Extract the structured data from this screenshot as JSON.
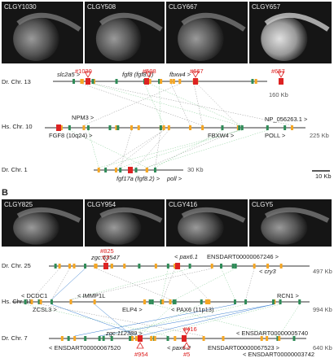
{
  "panels": [
    {
      "label": "A",
      "images": [
        "CLGY1030",
        "CLGY508",
        "CLGY667",
        "CLGY657"
      ],
      "tracks": [
        {
          "name": "Dr. Chr. 13",
          "size": "160 Kb",
          "genes": [
            "slc2a5 >",
            "fgf8 (fgf8.1)",
            "fbxw4 >"
          ],
          "enhancers": [
            "#1030",
            "#508",
            "#667",
            "#657"
          ]
        },
        {
          "name": "Hs. Chr. 10",
          "size": "225 Kb",
          "genes": [
            "NPM3 >",
            "FGF8 (10q24) >",
            "NP_056263.1 >",
            "FBXW4 >",
            "POLL >"
          ]
        },
        {
          "name": "Dr. Chr. 1",
          "size": "30 Kb",
          "genes": [
            "fgf17a (fgf8.2) >",
            "poll >"
          ]
        }
      ],
      "scale": "10 Kb"
    },
    {
      "label": "B",
      "images": [
        "CLGY825",
        "CLGY954",
        "CLGY416",
        "CLGY5"
      ],
      "tracks": [
        {
          "name": "Dr. Chr. 25",
          "size": "497 Kb",
          "genes": [
            "zgc:63547",
            "< pax6.1",
            "ENSDART00000067246 >",
            "< cry3"
          ],
          "enhancers": [
            "#825"
          ]
        },
        {
          "name": "Hs. Chr. 11",
          "size": "994 Kb",
          "genes": [
            "< DCDC1",
            "< IMMP1L",
            "ZCSL3 >",
            "ELP4 >",
            "< PAX6 (11p13)",
            "RCN1 >"
          ]
        },
        {
          "name": "Dr. Chr. 7",
          "size": "640 Kb",
          "genes": [
            "zgc:112389 >",
            "< ENSDART00000005740",
            "< ENSDART00000067520",
            "< pax6.2",
            "ENSDART00000067523 >",
            "< ENSDART00000003742"
          ],
          "enhancers": [
            "#416",
            "#954",
            "#5"
          ]
        }
      ]
    }
  ]
}
